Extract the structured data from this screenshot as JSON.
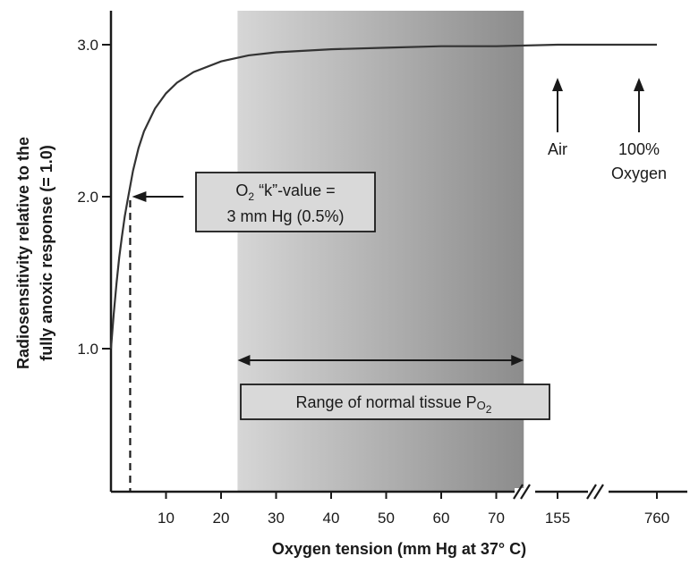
{
  "chart_data": {
    "type": "line",
    "title": "",
    "xlabel": "Oxygen tension (mm Hg at 37° C)",
    "ylabel_line1": "Radiosensitivity relative to the",
    "ylabel_line2": "fully anoxic response (= 1.0)",
    "y_ticks": [
      {
        "value": 1.0,
        "label": "1.0"
      },
      {
        "value": 2.0,
        "label": "2.0"
      },
      {
        "value": 3.0,
        "label": "3.0"
      }
    ],
    "x_ticks": [
      {
        "value": 10,
        "label": "10"
      },
      {
        "value": 20,
        "label": "20"
      },
      {
        "value": 30,
        "label": "30"
      },
      {
        "value": 40,
        "label": "40"
      },
      {
        "value": 50,
        "label": "50"
      },
      {
        "value": 60,
        "label": "60"
      },
      {
        "value": 70,
        "label": "70"
      },
      {
        "value": 155,
        "label": "155"
      },
      {
        "value": 760,
        "label": "760"
      }
    ],
    "x_axis_breaks": [
      "between 70 and 155",
      "between 155 and 760"
    ],
    "ylim": [
      0.0,
      3.2
    ],
    "series": [
      {
        "x": [
          0,
          0.5,
          1,
          1.5,
          2,
          2.5,
          3,
          4,
          5,
          6,
          8,
          10,
          12,
          15,
          20,
          25,
          30,
          40,
          50,
          60,
          70,
          155,
          760
        ],
        "y": [
          1.0,
          1.23,
          1.43,
          1.6,
          1.74,
          1.87,
          1.97,
          2.17,
          2.32,
          2.43,
          2.58,
          2.68,
          2.75,
          2.82,
          2.89,
          2.93,
          2.95,
          2.97,
          2.98,
          2.99,
          2.99,
          3.0,
          3.0
        ]
      }
    ],
    "shaded_region": {
      "x_start": 23,
      "x_end": 75
    },
    "annotations": {
      "k_value": {
        "x": 3,
        "y": 2.0,
        "line1_prefix": "O",
        "line1_sub": "2",
        "line1_suffix": " “k”-value =",
        "line2": "3 mm Hg (0.5%)"
      },
      "range": {
        "x_start": 23,
        "x_end": 75,
        "label_prefix": "Range of normal tissue P",
        "label_sub_letter": "O",
        "label_sub_digit": "2"
      },
      "air": {
        "x": 155,
        "label": "Air"
      },
      "oxygen": {
        "x": 760,
        "label_line1": "100%",
        "label_line2": "Oxygen"
      }
    }
  }
}
